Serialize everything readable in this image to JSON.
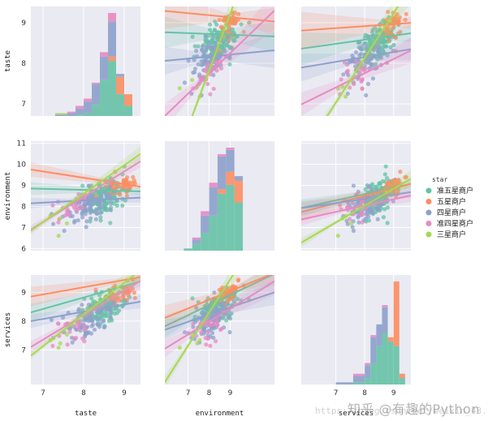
{
  "chart_data": {
    "type": "pairplot",
    "variables": [
      "taste",
      "environment",
      "services"
    ],
    "hue_title": "star",
    "hue_levels": [
      {
        "name": "准五星商户",
        "color": "#66c2a5"
      },
      {
        "name": "五星商户",
        "color": "#fc8d62"
      },
      {
        "name": "四星商户",
        "color": "#8da0cb"
      },
      {
        "name": "准四星商户",
        "color": "#e78ac3"
      },
      {
        "name": "三星商户",
        "color": "#a6d854"
      }
    ],
    "ranges": {
      "taste": [
        6.7,
        9.4
      ],
      "environment": [
        5.9,
        11.1
      ],
      "services": [
        5.8,
        9.6
      ]
    },
    "ticks": {
      "taste": [
        7,
        8,
        9
      ],
      "environment_y": [
        6,
        7,
        8,
        9,
        10,
        11
      ],
      "environment_x": [
        7,
        8,
        9
      ],
      "services": [
        7,
        8,
        9
      ]
    },
    "clusters": {
      "准五星商户": {
        "taste": [
          8.55,
          0.25
        ],
        "environment": [
          8.45,
          0.45
        ],
        "services": [
          8.5,
          0.3
        ],
        "n": 130
      },
      "五星商户": {
        "taste": [
          8.9,
          0.18
        ],
        "environment": [
          8.95,
          0.25
        ],
        "services": [
          9.0,
          0.15
        ],
        "n": 45
      },
      "四星商户": {
        "taste": [
          8.1,
          0.25
        ],
        "environment": [
          8.1,
          0.45
        ],
        "services": [
          8.0,
          0.3
        ],
        "n": 95
      },
      "准四星商户": {
        "taste": [
          7.75,
          0.25
        ],
        "environment": [
          7.8,
          0.4
        ],
        "services": [
          7.6,
          0.3
        ],
        "n": 22
      },
      "三星商户": {
        "taste": [
          7.1,
          0.3
        ],
        "environment": [
          7.2,
          0.4
        ],
        "services": [
          7.0,
          0.35
        ],
        "n": 4
      }
    },
    "regressions": {
      "environment_vs_taste": {
        "准五星商户": [
          8.85,
          -0.05
        ],
        "五星商户": [
          9.75,
          -0.3
        ],
        "四星商户": [
          8.15,
          0.1
        ],
        "准四星商户": [
          6.9,
          1.2
        ],
        "三星商户": [
          6.85,
          1.35
        ]
      },
      "services_vs_taste": {
        "准五星商户": [
          8.3,
          0.4
        ],
        "五星商户": [
          8.85,
          0.25
        ],
        "四星商户": [
          8.0,
          0.25
        ],
        "准四星商户": [
          7.1,
          0.85
        ],
        "三星商户": [
          6.8,
          1.1
        ]
      },
      "taste_vs_environment": {
        "准五星商户": [
          8.75,
          -0.02
        ],
        "五星商户": [
          9.25,
          -0.05
        ],
        "四星商户": [
          8.1,
          0.05
        ],
        "准四星商户": [
          7.1,
          0.5
        ],
        "三星商户": [
          6.0,
          1.4
        ]
      },
      "services_vs_environment": {
        "准五星商户": [
          8.1,
          0.35
        ],
        "五星商户": [
          8.35,
          0.3
        ],
        "四星商户": [
          7.9,
          0.25
        ],
        "准四星商户": [
          7.4,
          0.45
        ],
        "三星商户": [
          6.8,
          1.15
        ]
      },
      "taste_vs_services": {
        "准五星商户": [
          8.45,
          0.1
        ],
        "五星商户": [
          8.85,
          0.05
        ],
        "四星商户": [
          8.0,
          0.12
        ],
        "准四星商户": [
          7.3,
          0.35
        ],
        "三星商户": [
          6.7,
          1.1
        ]
      },
      "environment_vs_services": {
        "准五星商户": [
          8.2,
          0.3
        ],
        "五星商户": [
          8.05,
          0.35
        ],
        "四星商户": [
          8.1,
          0.2
        ],
        "准四星商户": [
          7.65,
          0.3
        ],
        "三星商户": [
          7.0,
          0.8
        ]
      }
    },
    "histograms": {
      "taste": {
        "bins": [
          7.3,
          7.6,
          7.8,
          8.0,
          8.2,
          8.4,
          8.6,
          8.8,
          9.0,
          9.2
        ],
        "stacks": [
          [
            0,
            0,
            1,
            2,
            8,
            25,
            38,
            15,
            7
          ],
          [
            0,
            0,
            0,
            0,
            0,
            0,
            3,
            12,
            8
          ],
          [
            1,
            2,
            4,
            8,
            14,
            16,
            24,
            2,
            0
          ],
          [
            0,
            1,
            2,
            2,
            1,
            3,
            6,
            0,
            0
          ],
          [
            1,
            0,
            0,
            0,
            0,
            0,
            0,
            0,
            0
          ]
        ]
      },
      "environment": {
        "bins": [
          6.8,
          7.2,
          7.6,
          8.0,
          8.4,
          8.8,
          9.2,
          9.6
        ],
        "stacks": [
          [
            1,
            3,
            8,
            16,
            26,
            30,
            22
          ],
          [
            0,
            0,
            0,
            0,
            2,
            6,
            10
          ],
          [
            0,
            2,
            8,
            13,
            15,
            10,
            2
          ],
          [
            0,
            1,
            2,
            2,
            1,
            1,
            0
          ],
          [
            0,
            0,
            0,
            0,
            0,
            0,
            0
          ]
        ]
      },
      "services": {
        "bins": [
          7.0,
          7.6,
          8.0,
          8.2,
          8.4,
          8.6,
          8.8,
          9.0,
          9.2,
          9.4
        ],
        "stacks": [
          [
            0,
            1,
            3,
            10,
            18,
            24,
            20,
            18,
            3
          ],
          [
            0,
            0,
            0,
            0,
            0,
            0,
            2,
            30,
            2
          ],
          [
            1,
            3,
            6,
            12,
            10,
            12,
            0,
            0,
            0
          ],
          [
            0,
            1,
            1,
            1,
            0,
            1,
            0,
            0,
            0
          ],
          [
            0,
            0,
            0,
            0,
            0,
            0,
            0,
            0,
            0
          ]
        ]
      }
    }
  },
  "watermark": "知乎 @有趣的Python",
  "watermark_url": "https://blog.csdn.net/weixin_43..."
}
